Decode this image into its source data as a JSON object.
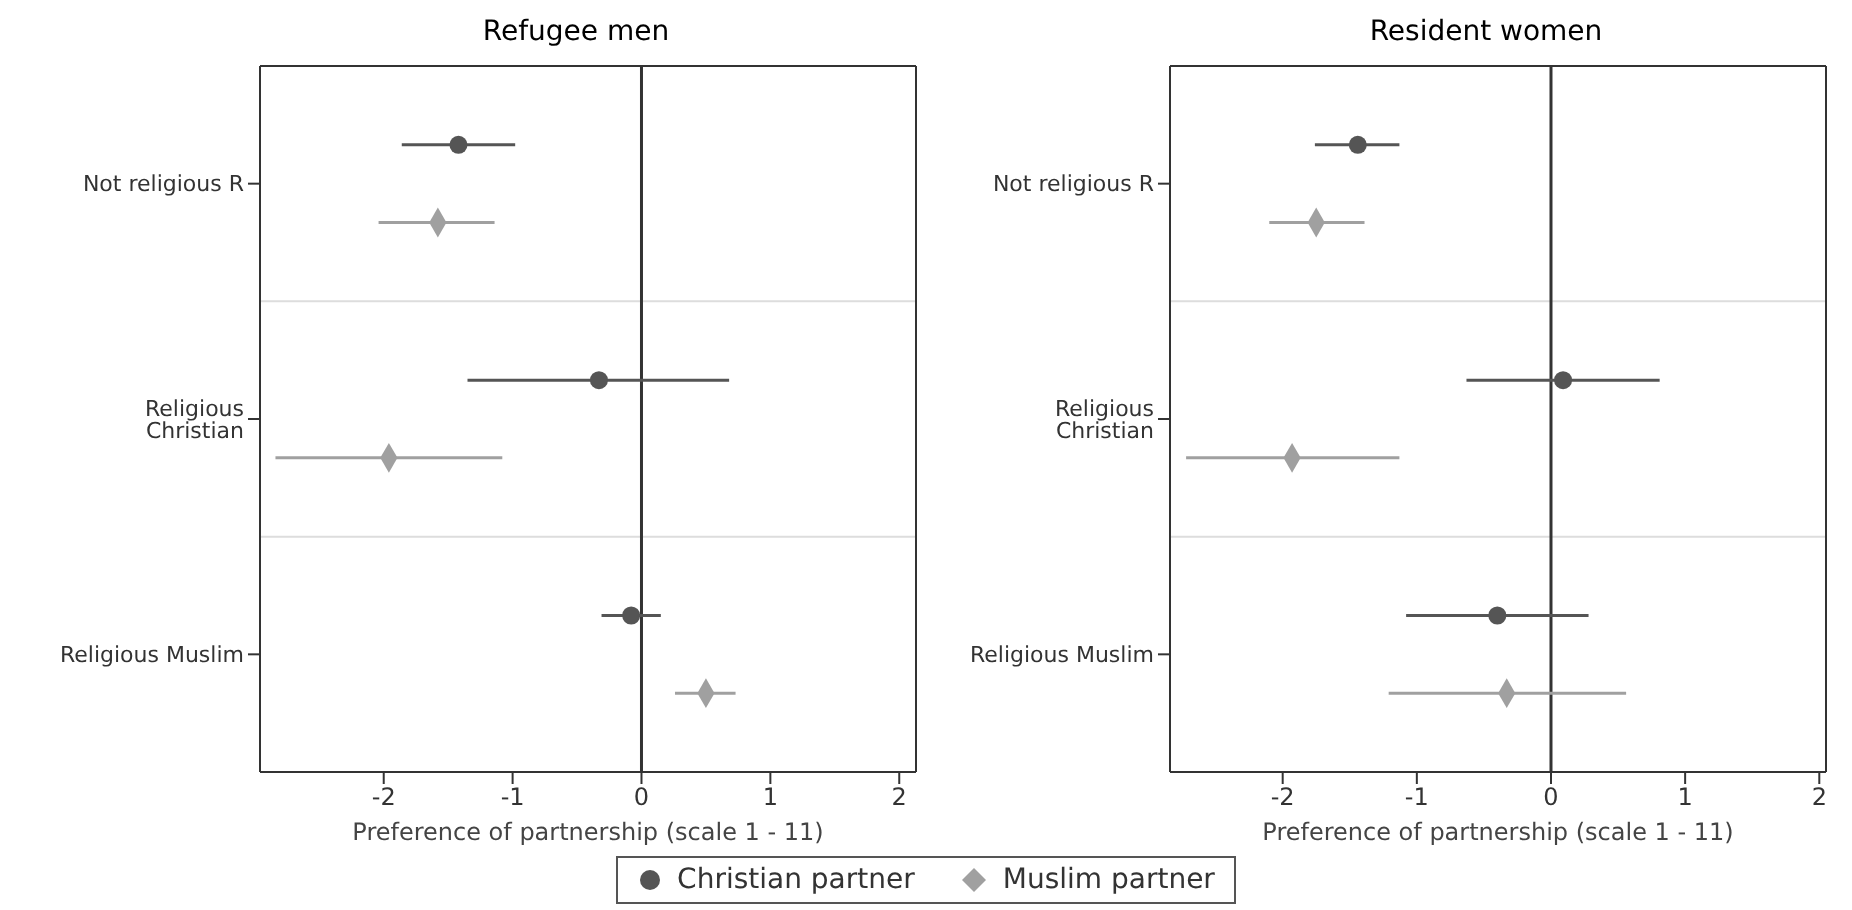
{
  "chart_data": [
    {
      "type": "scatter",
      "title": "Refugee men",
      "xlabel": "Preference of partnership (scale 1 - 11)",
      "orientation": "horizontal",
      "categories": [
        "Not religious R",
        "Religious Christian",
        "Religious Muslim"
      ],
      "xlim": [
        -2.96,
        2.13
      ],
      "xticks": [
        -2,
        -1,
        0,
        1,
        2
      ],
      "grid": "y",
      "legend": "bottom",
      "ref_lines": [
        {
          "axis": "x",
          "value": 0,
          "color": "#333333"
        }
      ],
      "series": [
        {
          "name": "Christian partner",
          "color": "#555555",
          "marker": "circle",
          "values": [
            -1.42,
            -0.33,
            -0.08
          ],
          "errors": [
            [
              -1.86,
              -0.98
            ],
            [
              -1.35,
              0.68
            ],
            [
              -0.31,
              0.15
            ]
          ]
        },
        {
          "name": "Muslim partner",
          "color": "#a0a0a0",
          "marker": "diamond",
          "values": [
            -1.58,
            -1.96,
            0.5
          ],
          "errors": [
            [
              -2.04,
              -1.14
            ],
            [
              -2.84,
              -1.08
            ],
            [
              0.26,
              0.73
            ]
          ]
        }
      ]
    },
    {
      "type": "scatter",
      "title": "Resident women",
      "xlabel": "Preference of partnership (scale 1 - 11)",
      "orientation": "horizontal",
      "categories": [
        "Not religious R",
        "Religious Christian",
        "Religious Muslim"
      ],
      "xlim": [
        -2.84,
        2.05
      ],
      "xticks": [
        -2,
        -1,
        0,
        1,
        2
      ],
      "grid": "y",
      "ref_lines": [
        {
          "axis": "x",
          "value": 0,
          "color": "#333333"
        }
      ],
      "series": [
        {
          "color": "#555555",
          "marker": "circle",
          "values": [
            -1.44,
            0.09,
            -0.4
          ],
          "errors": [
            [
              -1.76,
              -1.13
            ],
            [
              -0.63,
              0.81
            ],
            [
              -1.08,
              0.28
            ]
          ]
        },
        {
          "color": "#a0a0a0",
          "marker": "diamond",
          "values": [
            -1.75,
            -1.93,
            -0.33
          ],
          "errors": [
            [
              -2.1,
              -1.39
            ],
            [
              -2.72,
              -1.13
            ],
            [
              -1.21,
              0.56
            ]
          ]
        }
      ]
    }
  ]
}
